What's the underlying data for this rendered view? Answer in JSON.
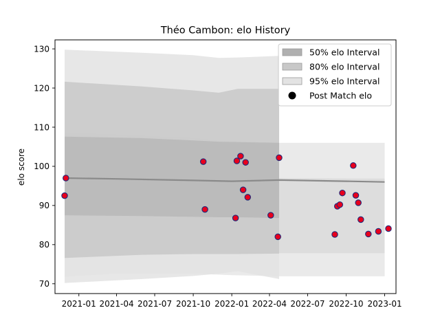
{
  "chart_data": {
    "type": "scatter",
    "title": "Théo Cambon: elo History",
    "xlabel": "",
    "ylabel": "elo score",
    "x_tick_labels": [
      "2021-01",
      "2021-04",
      "2021-07",
      "2021-10",
      "2022-01",
      "2022-04",
      "2022-07",
      "2022-10",
      "2023-01"
    ],
    "x_ticks": [
      "2021-01-01",
      "2021-04-01",
      "2021-07-01",
      "2021-10-01",
      "2022-01-01",
      "2022-04-01",
      "2022-07-01",
      "2022-10-01",
      "2023-01-01"
    ],
    "y_ticks": [
      70,
      80,
      90,
      100,
      110,
      120,
      130
    ],
    "xlim": [
      "2020-11-05",
      "2023-01-28"
    ],
    "ylim": [
      67.5,
      132.3
    ],
    "grid": false,
    "legend_position": "top-right",
    "legend": [
      {
        "label": "50% elo Interval",
        "kind": "patch",
        "color": "#b0b0b0"
      },
      {
        "label": "80% elo Interval",
        "kind": "patch",
        "color": "#c8c8c8"
      },
      {
        "label": "95% elo Interval",
        "kind": "patch",
        "color": "#e3e3e3"
      },
      {
        "label": "Post Match elo",
        "kind": "marker",
        "color": "#000000"
      }
    ],
    "bands": {
      "x": [
        "2020-11-28",
        "2020-11-29",
        "2021-06-01",
        "2021-10-01",
        "2021-12-01",
        "2022-01-15",
        "2022-04-24",
        "2022-04-25",
        "2022-07-01",
        "2022-10-01",
        "2022-12-01",
        "2023-01-01"
      ],
      "p50_lower": [
        87.5,
        87.5,
        87.3,
        87.1,
        87.0,
        87.0,
        86.8,
        86.9,
        86.9,
        86.9,
        86.9,
        86.9
      ],
      "p50_upper": [
        107.6,
        107.6,
        107.2,
        106.6,
        106.3,
        106.2,
        106.0,
        105.9,
        105.9,
        105.9,
        105.9,
        105.9
      ],
      "p80_lower": [
        76.6,
        76.6,
        77.4,
        77.6,
        77.6,
        77.6,
        77.7,
        77.8,
        77.8,
        77.8,
        77.8,
        77.8
      ],
      "p80_upper": [
        121.6,
        121.6,
        120.4,
        119.4,
        118.8,
        119.8,
        119.8,
        119.8,
        119.8,
        119.8,
        119.8,
        119.8
      ],
      "p95_lower": [
        70.2,
        70.2,
        71.2,
        72.0,
        72.6,
        73.2,
        71.2,
        71.2,
        71.2,
        71.2,
        71.1,
        71.0
      ],
      "p95_upper": [
        129.8,
        129.8,
        129.0,
        128.4,
        127.7,
        127.8,
        128.2,
        128.2,
        128.2,
        128.2,
        128.2,
        128.2
      ],
      "band_end": "2022-04-24",
      "tail_p95_lower": [
        71.8,
        72.6,
        72.6,
        72.2,
        71.9,
        71.9,
        71.9
      ],
      "tail_p95_upper": [
        108.6,
        108.1,
        107.2,
        106.4,
        106.0,
        106.0,
        106.0
      ],
      "tail_p80_lower": [
        77.3,
        77.5,
        77.7,
        77.7,
        77.8,
        77.8,
        77.8
      ],
      "tail_p80_upper": [
        98.8,
        98.4,
        97.8,
        97.4,
        97.0,
        96.9,
        96.9
      ],
      "tail_x": [
        "2020-11-28",
        "2021-04-01",
        "2021-10-01",
        "2022-01-01",
        "2022-04-24",
        "2022-10-01",
        "2023-01-01"
      ],
      "line": [
        97.0,
        96.8,
        96.4,
        96.2,
        96.5,
        96.2,
        96.0
      ]
    },
    "series": [
      {
        "x": [
          "2020-11-28",
          "2020-12-01",
          "2021-10-25",
          "2021-10-29",
          "2022-01-10",
          "2022-01-13",
          "2022-01-22",
          "2022-01-28",
          "2022-02-03",
          "2022-02-08",
          "2022-04-04",
          "2022-04-21",
          "2022-04-24",
          "2022-09-04",
          "2022-09-10",
          "2022-09-16",
          "2022-09-22",
          "2022-10-18",
          "2022-10-24",
          "2022-10-30",
          "2022-11-05",
          "2022-11-23",
          "2022-12-17",
          "2023-01-10"
        ],
        "y": [
          92.5,
          97.0,
          101.2,
          89.0,
          86.8,
          101.4,
          102.6,
          94.0,
          101.0,
          92.1,
          87.5,
          82.0,
          102.2,
          82.6,
          89.8,
          90.2,
          93.2,
          100.2,
          92.6,
          90.7,
          86.4,
          82.7,
          83.4,
          84.1
        ]
      }
    ]
  }
}
